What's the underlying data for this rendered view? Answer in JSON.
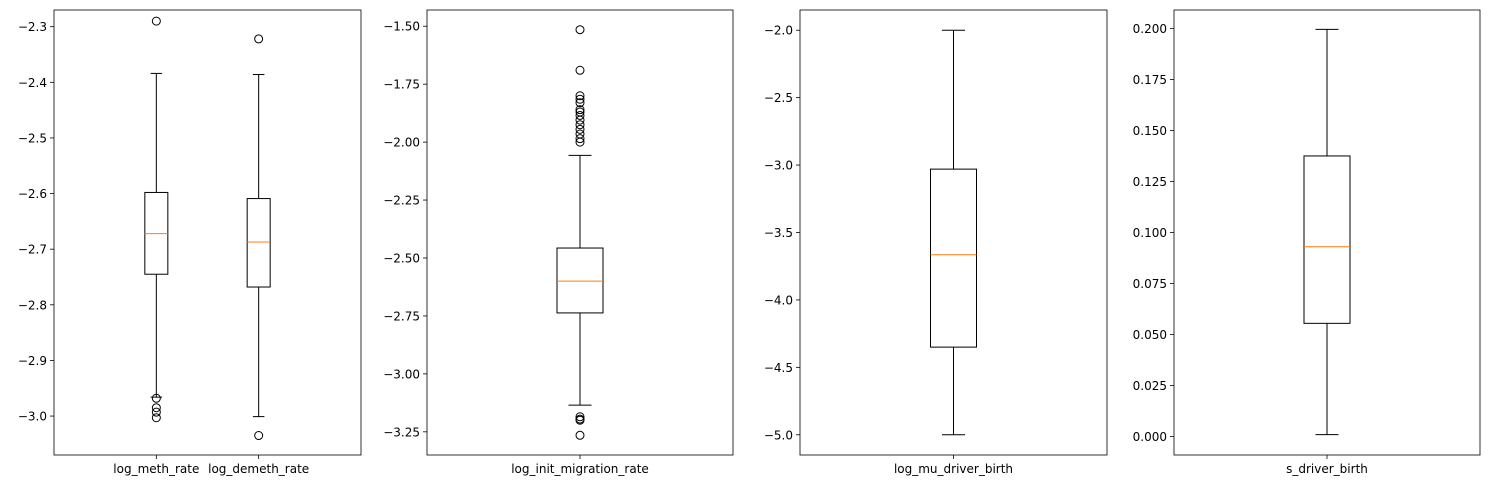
{
  "chart_data": [
    {
      "type": "box",
      "categories": [
        "log_meth_rate",
        "log_demeth_rate"
      ],
      "ylim": [
        -3.07,
        -2.27
      ],
      "yticks": [
        -3.0,
        -2.9,
        -2.8,
        -2.7,
        -2.6,
        -2.5,
        -2.4,
        -2.3
      ],
      "ytick_labels": [
        "−3.0",
        "−2.9",
        "−2.8",
        "−2.7",
        "−2.6",
        "−2.5",
        "−2.4",
        "−2.3"
      ],
      "boxes": [
        {
          "whislo": -2.966,
          "q1": -2.745,
          "med": -2.672,
          "q3": -2.598,
          "whishi": -2.384,
          "fliers": [
            -2.29,
            -2.968,
            -2.985,
            -2.993,
            -3.003
          ]
        },
        {
          "whislo": -3.001,
          "q1": -2.768,
          "med": -2.687,
          "q3": -2.609,
          "whishi": -2.386,
          "fliers": [
            -2.322,
            -3.035
          ]
        }
      ]
    },
    {
      "type": "box",
      "categories": [
        "log_init_migration_rate"
      ],
      "ylim": [
        -3.35,
        -1.43
      ],
      "yticks": [
        -3.25,
        -3.0,
        -2.75,
        -2.5,
        -2.25,
        -2.0,
        -1.75,
        -1.5
      ],
      "ytick_labels": [
        "−3.25",
        "−3.00",
        "−2.75",
        "−2.50",
        "−2.25",
        "−2.00",
        "−1.75",
        "−1.50"
      ],
      "boxes": [
        {
          "whislo": -3.135,
          "q1": -2.737,
          "med": -2.6,
          "q3": -2.457,
          "whishi": -2.057,
          "fliers": [
            -1.515,
            -1.69,
            -1.8,
            -1.815,
            -1.83,
            -1.86,
            -1.87,
            -1.885,
            -1.905,
            -1.925,
            -1.945,
            -1.965,
            -1.985,
            -2.0,
            -3.185,
            -3.195,
            -3.2,
            -3.265
          ]
        }
      ]
    },
    {
      "type": "box",
      "categories": [
        "log_mu_driver_birth"
      ],
      "ylim": [
        -5.15,
        -1.85
      ],
      "yticks": [
        -5.0,
        -4.5,
        -4.0,
        -3.5,
        -3.0,
        -2.5,
        -2.0
      ],
      "ytick_labels": [
        "−5.0",
        "−4.5",
        "−4.0",
        "−3.5",
        "−3.0",
        "−2.5",
        "−2.0"
      ],
      "boxes": [
        {
          "whislo": -5.0,
          "q1": -4.35,
          "med": -3.665,
          "q3": -3.03,
          "whishi": -2.0,
          "fliers": []
        }
      ]
    },
    {
      "type": "box",
      "categories": [
        "s_driver_birth"
      ],
      "ylim": [
        -0.009,
        0.209
      ],
      "yticks": [
        0.0,
        0.025,
        0.05,
        0.075,
        0.1,
        0.125,
        0.15,
        0.175,
        0.2
      ],
      "ytick_labels": [
        "0.000",
        "0.025",
        "0.050",
        "0.075",
        "0.100",
        "0.125",
        "0.150",
        "0.175",
        "0.200"
      ],
      "boxes": [
        {
          "whislo": 0.001,
          "q1": 0.0555,
          "med": 0.093,
          "q3": 0.1375,
          "whishi": 0.1995,
          "fliers": []
        }
      ]
    }
  ],
  "colors": {
    "median": "#ff7f0e",
    "line": "#000000"
  }
}
